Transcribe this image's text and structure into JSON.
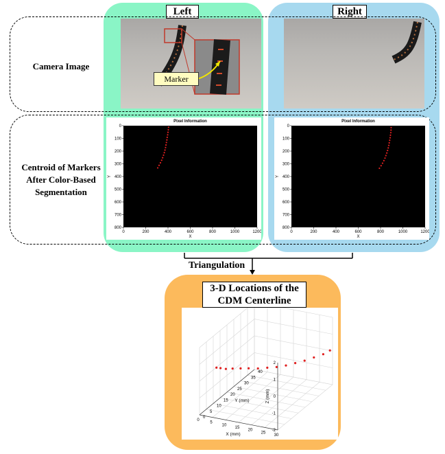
{
  "panels": {
    "left_title": "Left",
    "right_title": "Right",
    "bottom_title_line1": "3-D Locations of the",
    "bottom_title_line2": "CDM Centerline"
  },
  "rows": {
    "camera_label": "Camera Image",
    "centroid_line1": "Centroid of Markers",
    "centroid_line2": "After Color-Based",
    "centroid_line3": "Segmentation"
  },
  "marker_label": "Marker",
  "triangulation_label": "Triangulation",
  "colors": {
    "left_panel": "#8af5c6",
    "right_panel": "#a7d9ef",
    "bottom_panel": "#fcba5c",
    "markers": "#e02020",
    "plot_bg": "#000000"
  },
  "chart_data": [
    {
      "type": "scatter",
      "title": "Pixel Information",
      "xlabel": "X",
      "ylabel": "Y",
      "xlim": [
        0,
        1200
      ],
      "ylim": [
        800,
        0
      ],
      "xticks": [
        "0",
        "200",
        "400",
        "600",
        "800",
        "1000",
        "1200"
      ],
      "yticks": [
        "0",
        "100",
        "200",
        "300",
        "400",
        "500",
        "600",
        "700",
        "800"
      ],
      "x": [
        405,
        403,
        400,
        397,
        393,
        390,
        386,
        382,
        378,
        373,
        367,
        360,
        352,
        343,
        332,
        320,
        308
      ],
      "y": [
        12,
        32,
        52,
        72,
        92,
        112,
        132,
        152,
        172,
        192,
        212,
        232,
        252,
        272,
        292,
        312,
        332
      ]
    },
    {
      "type": "scatter",
      "title": "Pixel Information",
      "xlabel": "X",
      "ylabel": "Y",
      "xlim": [
        0,
        1200
      ],
      "ylim": [
        800,
        0
      ],
      "xticks": [
        "0",
        "200",
        "400",
        "600",
        "800",
        "1000",
        "1200"
      ],
      "yticks": [
        "0",
        "100",
        "200",
        "300",
        "400",
        "500",
        "600",
        "700",
        "800"
      ],
      "x": [
        895,
        894,
        892,
        889,
        886,
        882,
        878,
        874,
        869,
        863,
        856,
        848,
        840,
        830,
        818,
        805,
        790
      ],
      "y": [
        15,
        35,
        55,
        75,
        95,
        115,
        135,
        155,
        175,
        195,
        215,
        235,
        255,
        275,
        295,
        315,
        335
      ]
    },
    {
      "type": "scatter",
      "title": "",
      "xlabel": "X (mm)",
      "ylabel": "Y (mm)",
      "zlabel": "Z (mm)",
      "xlim": [
        0,
        30
      ],
      "ylim": [
        0,
        40
      ],
      "zlim": [
        -2,
        2
      ],
      "xticks": [
        "0",
        "5",
        "10",
        "15",
        "20",
        "25",
        "30"
      ],
      "yticks": [
        "0",
        "5",
        "10",
        "15",
        "20",
        "25",
        "30",
        "35",
        "40"
      ],
      "zticks": [
        "-2",
        "-1",
        "0",
        "1",
        "2"
      ],
      "x": [
        29,
        28,
        26,
        24,
        22,
        20,
        18,
        16,
        14,
        12,
        10.5,
        9,
        8,
        7,
        6.5
      ],
      "y": [
        40,
        37,
        34,
        31,
        28,
        25,
        22,
        19,
        16,
        13,
        10,
        7,
        4,
        2,
        0
      ],
      "z": [
        0,
        -0.05,
        -0.1,
        -0.15,
        -0.15,
        -0.15,
        -0.1,
        0,
        0.1,
        0.25,
        0.4,
        0.55,
        0.7,
        0.85,
        1.0
      ]
    }
  ]
}
